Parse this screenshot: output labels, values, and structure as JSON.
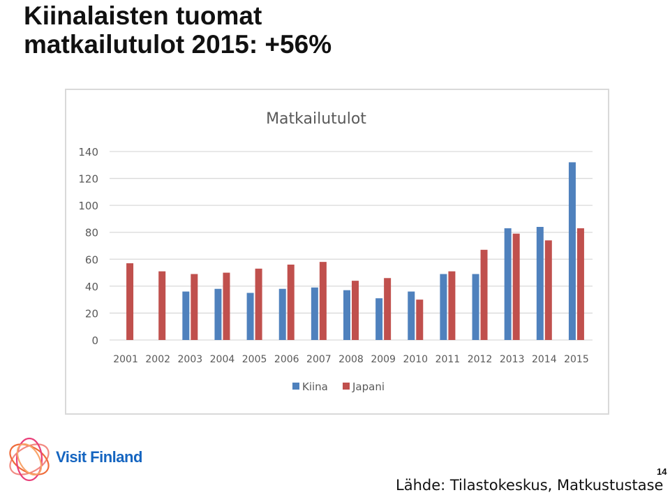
{
  "slide": {
    "title_line1": "Kiinalaisten tuomat",
    "title_line2": "matkailutulot 2015: +56%",
    "logo_text": "Visit Finland",
    "page_number": "14",
    "source": "Lähde: Tilastokeskus, Matkustustase"
  },
  "colors": {
    "kiina": "#4f81bd",
    "japani": "#c0504d",
    "grid": "#d9d9d9",
    "axis_text": "#595959"
  },
  "chart_data": {
    "type": "bar",
    "title": "Matkailutulot",
    "categories": [
      "2001",
      "2002",
      "2003",
      "2004",
      "2005",
      "2006",
      "2007",
      "2008",
      "2009",
      "2010",
      "2011",
      "2012",
      "2013",
      "2014",
      "2015"
    ],
    "series": [
      {
        "name": "Kiina",
        "values": [
          null,
          null,
          36,
          38,
          35,
          38,
          39,
          37,
          31,
          36,
          49,
          49,
          83,
          84,
          132
        ]
      },
      {
        "name": "Japani",
        "values": [
          57,
          51,
          49,
          50,
          53,
          56,
          58,
          44,
          46,
          30,
          51,
          67,
          79,
          74,
          83
        ]
      }
    ],
    "ylim": [
      0,
      140
    ],
    "yticks": [
      "0",
      "20",
      "40",
      "60",
      "80",
      "100",
      "120",
      "140"
    ],
    "grid": true,
    "legend_position": "bottom"
  }
}
